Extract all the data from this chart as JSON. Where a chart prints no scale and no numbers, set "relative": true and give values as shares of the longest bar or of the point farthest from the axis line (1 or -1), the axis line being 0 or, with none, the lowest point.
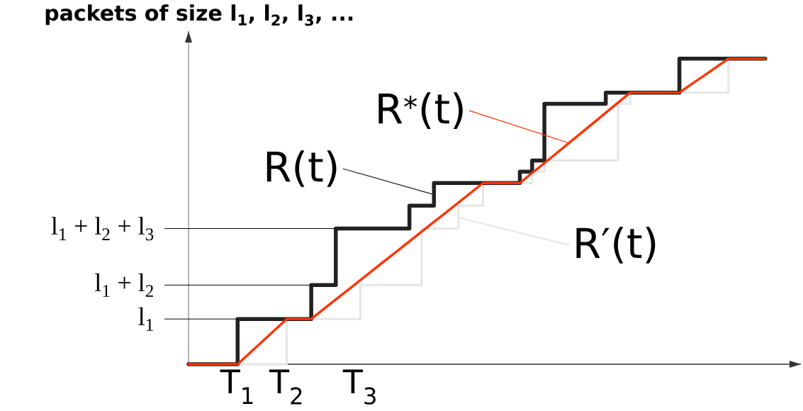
{
  "chart_data": {
    "type": "step",
    "title": "packets of size l$_{1}$, l$_{2}$, l$_{3}$, ...",
    "relative": true,
    "legend": "top left",
    "categories": [
      null,
      null,
      null,
      null,
      "T$_{1}$",
      null,
      null,
      null,
      "T$_{2}$",
      null,
      null,
      null,
      null,
      null,
      "T$_{3}$",
      null,
      null,
      null,
      null,
      null,
      null,
      null,
      null,
      null,
      null,
      null,
      null,
      null,
      null,
      null,
      null,
      null,
      null,
      null,
      null,
      null,
      null,
      null,
      null,
      null,
      null,
      null,
      null,
      null,
      null,
      null,
      null,
      null
    ],
    "annotations": [
      "l$_{1}$",
      "l$_{1}$ + l$_{2}$",
      "l$_{1}$ + l$_{2}$ + l$_{3}$"
    ],
    "series": [
      {
        "name": "R′(t)",
        "color": "#e6e6e6",
        "values": [
          0,
          0,
          0,
          0,
          0,
          0,
          0,
          0,
          0.148,
          0.148,
          0.148,
          0.148,
          0.148,
          0.148,
          0.259,
          0.259,
          0.259,
          0.259,
          0.259,
          0.444,
          0.444,
          0.444,
          0.519,
          0.519,
          0.593,
          0.593,
          0.593,
          0.593,
          0.63,
          0.667,
          0.667,
          0.667,
          0.667,
          0.667,
          0.667,
          0.852,
          0.889,
          0.889,
          0.889,
          0.889,
          0.889,
          0.889,
          0.889,
          0.889,
          1,
          1,
          1,
          1
        ]
      },
      {
        "name": "R(t)",
        "color": "#222222",
        "values": [
          0,
          0,
          0,
          0,
          0.148,
          0.148,
          0.148,
          0.148,
          0.148,
          0.148,
          0.259,
          0.259,
          0.444,
          0.444,
          0.444,
          0.444,
          0.444,
          0.444,
          0.519,
          0.519,
          0.593,
          0.593,
          0.593,
          0.593,
          0.593,
          0.593,
          0.593,
          0.63,
          0.667,
          0.852,
          0.852,
          0.852,
          0.852,
          0.852,
          0.889,
          0.889,
          0.889,
          0.889,
          0.889,
          0.889,
          1,
          1,
          1,
          1,
          1,
          1,
          1,
          1
        ]
      },
      {
        "name": "R$^{*}$(t)",
        "type": "line",
        "color": "#ff3300",
        "values": [
          0,
          0,
          0,
          0,
          0,
          0.037,
          0.074,
          0.111,
          0.148,
          0.148,
          0.148,
          0.18,
          0.212,
          0.243,
          0.275,
          0.307,
          0.339,
          0.37,
          0.402,
          0.434,
          0.466,
          0.497,
          0.529,
          0.561,
          0.593,
          0.593,
          0.593,
          0.593,
          0.626,
          0.658,
          0.691,
          0.724,
          0.757,
          0.79,
          0.823,
          0.856,
          0.889,
          0.889,
          0.889,
          0.889,
          0.889,
          0.917,
          0.944,
          0.972,
          1,
          1,
          1,
          1
        ]
      }
    ]
  }
}
